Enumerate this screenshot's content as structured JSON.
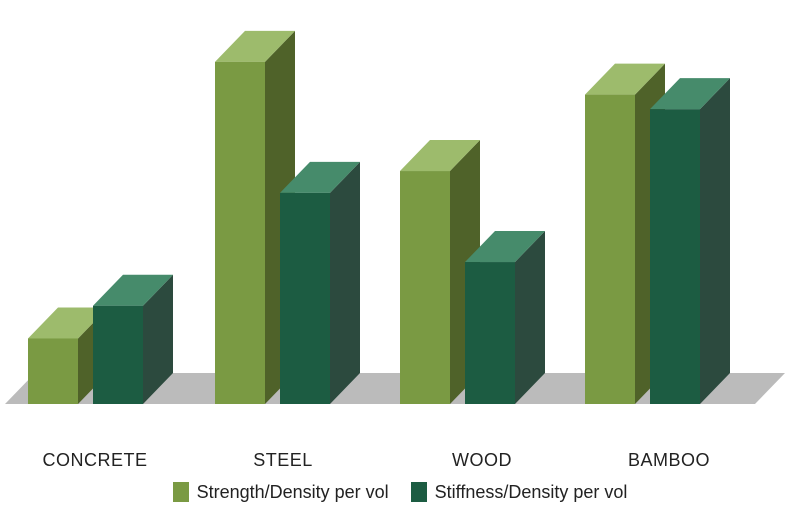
{
  "chart_data": {
    "type": "bar",
    "title": "",
    "xlabel": "",
    "ylabel": "",
    "ylim": [
      0,
      100
    ],
    "grid": false,
    "legend_position": "bottom",
    "categories": [
      "CONCRETE",
      "STEEL",
      "WOOD",
      "BAMBOO"
    ],
    "series": [
      {
        "name": "Strength/Density per vol",
        "values": [
          18,
          94,
          64,
          85
        ]
      },
      {
        "name": "Stiffness/Density per vol",
        "values": [
          27,
          58,
          39,
          81
        ]
      }
    ],
    "colors": {
      "strength": {
        "front": "#7a9a43",
        "top": "#9dbb6c",
        "side": "#4f6229"
      },
      "stiffness": {
        "front": "#1c5c42",
        "top": "#468b6b",
        "side": "#2c4a3e"
      },
      "floor": "#bbbbbb"
    }
  }
}
